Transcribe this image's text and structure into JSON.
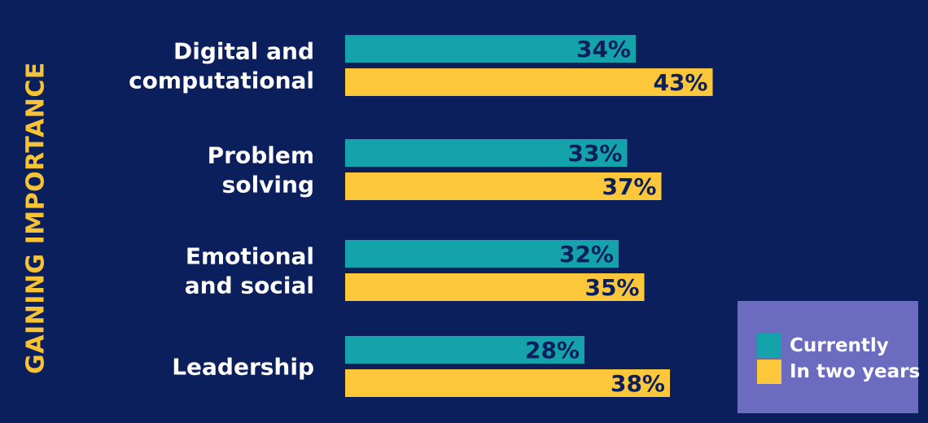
{
  "side_title": "GAINING IMPORTANCE",
  "legend": {
    "items": [
      {
        "label": "Currently",
        "color": "#15a3ab"
      },
      {
        "label": "In two years",
        "color": "#fcc73a"
      }
    ]
  },
  "chart_data": {
    "type": "bar",
    "orientation": "horizontal",
    "categories": [
      [
        "Digital and",
        "computational"
      ],
      [
        "Problem",
        "solving"
      ],
      [
        "Emotional",
        "and social"
      ],
      [
        "Leadership"
      ]
    ],
    "series": [
      {
        "name": "Currently",
        "values": [
          34,
          33,
          32,
          28
        ],
        "color": "#15a3ab"
      },
      {
        "name": "In two years",
        "values": [
          43,
          37,
          35,
          38
        ],
        "color": "#fcc73a"
      }
    ],
    "value_suffix": "%",
    "xlim": [
      0,
      100
    ],
    "grid": false,
    "legend_position": "bottom-right"
  }
}
